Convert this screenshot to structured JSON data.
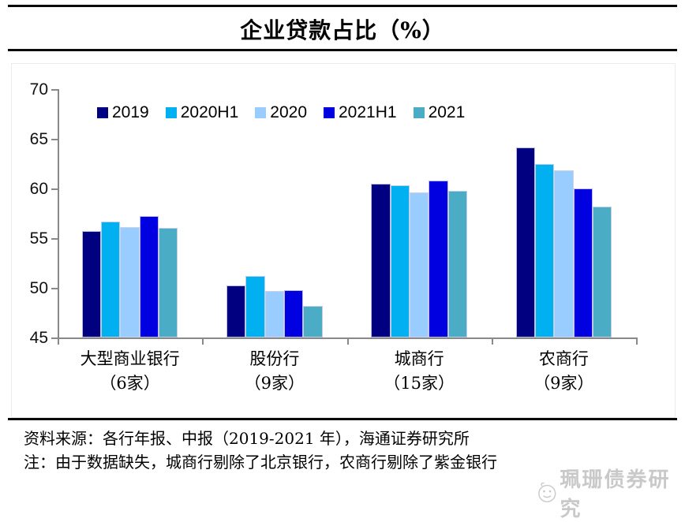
{
  "header": {
    "title": "企业贷款占比（%）"
  },
  "chart_data": {
    "type": "bar",
    "categories": [
      "大型商业银行",
      "股份行",
      "城商行",
      "农商行"
    ],
    "category_counts": [
      "（6家）",
      "（9家）",
      "（15家）",
      "（9家）"
    ],
    "series": [
      {
        "name": "2019",
        "color": "#000080",
        "values": [
          55.7,
          50.2,
          60.5,
          64.1
        ]
      },
      {
        "name": "2020H1",
        "color": "#00B0F0",
        "values": [
          56.7,
          51.2,
          60.3,
          62.5
        ]
      },
      {
        "name": "2020",
        "color": "#99CCFF",
        "values": [
          56.1,
          49.7,
          59.6,
          61.8
        ]
      },
      {
        "name": "2021H1",
        "color": "#0000E0",
        "values": [
          57.2,
          49.8,
          60.8,
          60.0
        ]
      },
      {
        "name": "2021",
        "color": "#4BACC6",
        "values": [
          56.0,
          48.2,
          59.8,
          58.2
        ]
      }
    ],
    "ylim": [
      45,
      70
    ],
    "yticks": [
      45,
      50,
      55,
      60,
      65,
      70
    ],
    "grid": false,
    "legend_position": "top-left",
    "axis_color": "#898989",
    "title": "企业贷款占比（%）"
  },
  "footer": {
    "source": "资料来源：各行年报、中报（2019-2021 年），海通证券研究所",
    "note": "注：由于数据缺失，城商行剔除了北京银行，农商行剔除了紫金银行",
    "watermark": "珮珊债券研究"
  }
}
